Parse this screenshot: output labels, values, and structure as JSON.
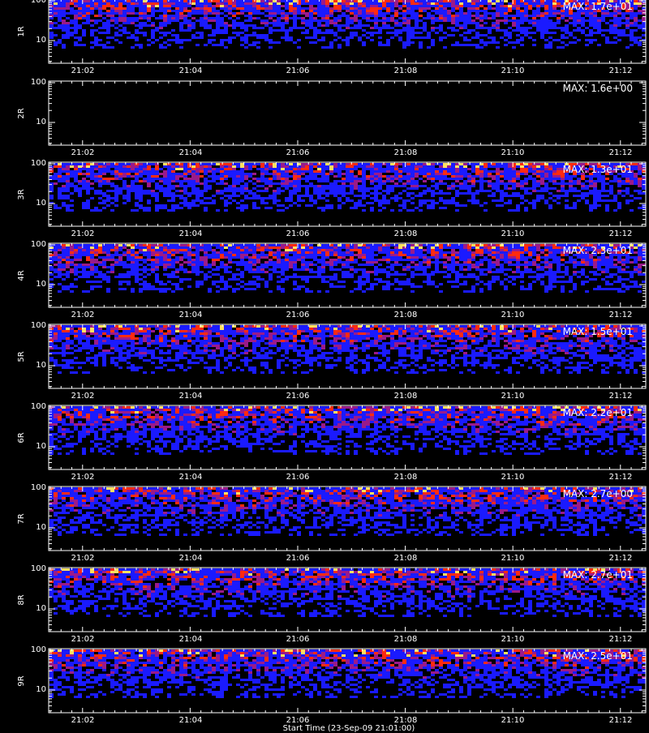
{
  "chart_data": [
    {
      "type": "heatmap",
      "panel_label": "1R",
      "max_label": "MAX: 1.7e+01",
      "yticks": [
        "100",
        "10"
      ],
      "xticks": [
        "21:02",
        "21:04",
        "21:06",
        "21:08",
        "21:10",
        "21:12"
      ],
      "yscale": "log",
      "empty": false
    },
    {
      "type": "heatmap",
      "panel_label": "2R",
      "max_label": "MAX: 1.6e+00",
      "yticks": [
        "100",
        "10"
      ],
      "xticks": [
        "21:02",
        "21:04",
        "21:06",
        "21:08",
        "21:10",
        "21:12"
      ],
      "yscale": "log",
      "empty": true
    },
    {
      "type": "heatmap",
      "panel_label": "3R",
      "max_label": "MAX: 1.3e+01",
      "yticks": [
        "100",
        "10"
      ],
      "xticks": [
        "21:02",
        "21:04",
        "21:06",
        "21:08",
        "21:10",
        "21:12"
      ],
      "yscale": "log",
      "empty": false
    },
    {
      "type": "heatmap",
      "panel_label": "4R",
      "max_label": "MAX: 2.3e+01",
      "yticks": [
        "100",
        "10"
      ],
      "xticks": [
        "21:02",
        "21:04",
        "21:06",
        "21:08",
        "21:10",
        "21:12"
      ],
      "yscale": "log",
      "empty": false
    },
    {
      "type": "heatmap",
      "panel_label": "5R",
      "max_label": "MAX: 1.5e+01",
      "yticks": [
        "100",
        "10"
      ],
      "xticks": [
        "21:02",
        "21:04",
        "21:06",
        "21:08",
        "21:10",
        "21:12"
      ],
      "yscale": "log",
      "empty": false
    },
    {
      "type": "heatmap",
      "panel_label": "6R",
      "max_label": "MAX: 2.2e+01",
      "yticks": [
        "100",
        "10"
      ],
      "xticks": [
        "21:02",
        "21:04",
        "21:06",
        "21:08",
        "21:10",
        "21:12"
      ],
      "yscale": "log",
      "empty": false
    },
    {
      "type": "heatmap",
      "panel_label": "7R",
      "max_label": "MAX: 2.7e+00",
      "yticks": [
        "100",
        "10"
      ],
      "xticks": [
        "21:02",
        "21:04",
        "21:06",
        "21:08",
        "21:10",
        "21:12"
      ],
      "yscale": "log",
      "empty": false
    },
    {
      "type": "heatmap",
      "panel_label": "8R",
      "max_label": "MAX: 2.7e+01",
      "yticks": [
        "100",
        "10"
      ],
      "xticks": [
        "21:02",
        "21:04",
        "21:06",
        "21:08",
        "21:10",
        "21:12"
      ],
      "yscale": "log",
      "empty": false
    },
    {
      "type": "heatmap",
      "panel_label": "9R",
      "max_label": "MAX: 2.5e+01",
      "yticks": [
        "100",
        "10"
      ],
      "xticks": [
        "21:02",
        "21:04",
        "21:06",
        "21:08",
        "21:10",
        "21:12"
      ],
      "yscale": "log",
      "empty": false
    }
  ],
  "x_axis_title": "Start Time (23-Sep-09 21:01:00)",
  "colors": {
    "background": "#000000",
    "axes": "#ffffff",
    "low": "#1a1aff",
    "mid": "#9a1a8a",
    "high": "#ff2a10",
    "peak": "#ffe060"
  }
}
